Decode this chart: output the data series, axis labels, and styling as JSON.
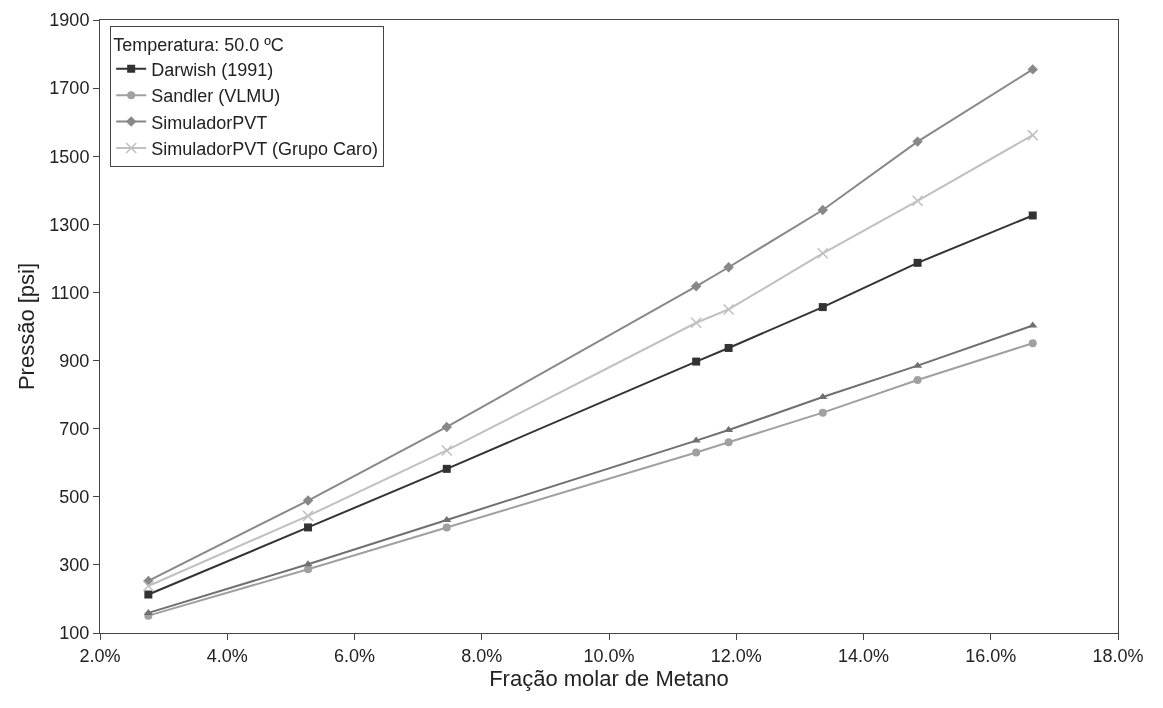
{
  "chart_data": {
    "type": "line",
    "xlabel": "Fração molar de Metano",
    "ylabel": "Pressão [psi]",
    "legend_title": "Temperatura: 50.0 ºC",
    "legend": "top left",
    "grid": false,
    "line_style": "solid",
    "x": [
      0.0276,
      0.0527,
      0.0745,
      0.1137,
      0.1188,
      0.1336,
      0.1485,
      0.1666
    ],
    "xlim": [
      0.02,
      0.18
    ],
    "xticks": [
      {
        "value": 0.02,
        "label": "2.0%"
      },
      {
        "value": 0.04,
        "label": "4.0%"
      },
      {
        "value": 0.06,
        "label": "6.0%"
      },
      {
        "value": 0.08,
        "label": "8.0%"
      },
      {
        "value": 0.1,
        "label": "10.0%"
      },
      {
        "value": 0.12,
        "label": "12.0%"
      },
      {
        "value": 0.14,
        "label": "14.0%"
      },
      {
        "value": 0.16,
        "label": "16.0%"
      },
      {
        "value": 0.18,
        "label": "18.0%"
      }
    ],
    "ylim": [
      100,
      1900
    ],
    "yticks": [
      100,
      300,
      500,
      700,
      900,
      1100,
      1300,
      1500,
      1700,
      1900
    ],
    "series": [
      {
        "name": "Darwish (1991)",
        "color": "#333333",
        "marker": "square",
        "values": [
          213,
          410,
          582,
          897,
          937,
          1057,
          1187,
          1326
        ]
      },
      {
        "name": "Sandler (VLMU)",
        "color": "#a0a0a0",
        "marker": "circle",
        "values": [
          151,
          287,
          410,
          630,
          660,
          747,
          843,
          951
        ]
      },
      {
        "color": "#707070",
        "marker": "triangle",
        "values": [
          159,
          302,
          432,
          665,
          696,
          793,
          885,
          1003
        ]
      },
      {
        "name": "SimuladorPVT",
        "color": "#888888",
        "marker": "diamond",
        "values": [
          253,
          489,
          705,
          1118,
          1174,
          1342,
          1543,
          1755
        ]
      },
      {
        "name": "SimuladorPVT (Grupo Caro)",
        "color": "#c0c0c0",
        "marker": "cross",
        "values": [
          238,
          444,
          636,
          1011,
          1050,
          1215,
          1369,
          1562
        ]
      }
    ]
  }
}
